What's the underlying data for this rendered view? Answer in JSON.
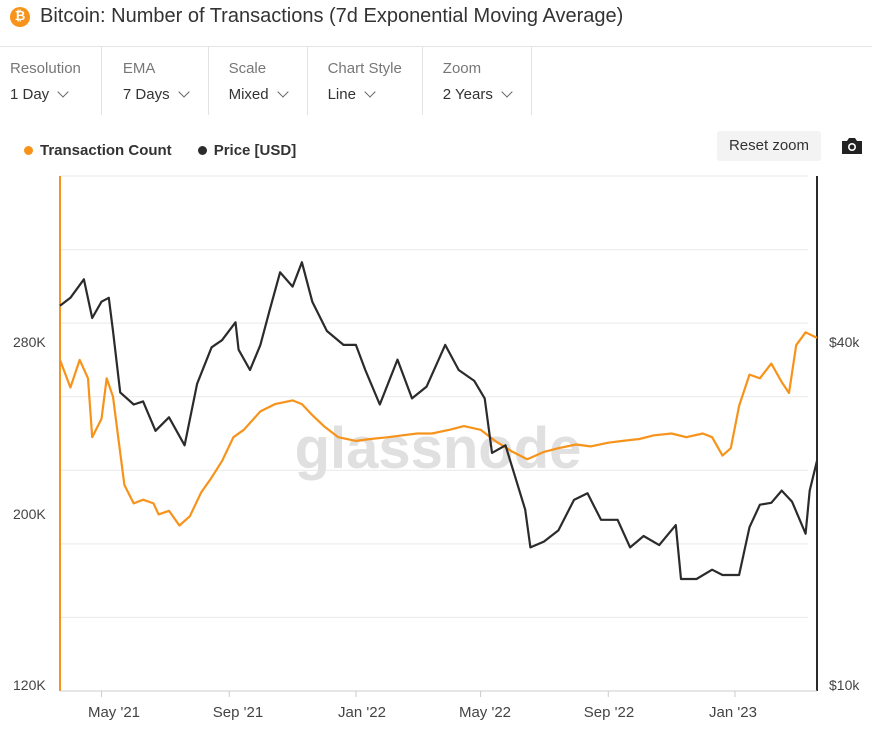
{
  "header": {
    "coin_icon": "bitcoin-icon",
    "title": "Bitcoin: Number of Transactions (7d Exponential Moving Average)"
  },
  "controls": [
    {
      "label": "Resolution",
      "value": "1 Day"
    },
    {
      "label": "EMA",
      "value": "7 Days"
    },
    {
      "label": "Scale",
      "value": "Mixed"
    },
    {
      "label": "Chart Style",
      "value": "Line"
    },
    {
      "label": "Zoom",
      "value": "2 Years"
    }
  ],
  "toolbar": {
    "reset_zoom_label": "Reset zoom",
    "camera_icon": "camera-icon"
  },
  "watermark": "glassnode",
  "colors": {
    "transactions": "#f7931a",
    "price": "#2b2b2b",
    "grid": "#e9e9e9"
  },
  "chart_data": {
    "type": "line",
    "legend_position": "top-left",
    "grid": true,
    "x_range": [
      "2021-03-22",
      "2023-03-21"
    ],
    "x_ticks": [
      {
        "date": "2021-05-01",
        "label": "May '21"
      },
      {
        "date": "2021-09-01",
        "label": "Sep '21"
      },
      {
        "date": "2022-01-01",
        "label": "Jan '22"
      },
      {
        "date": "2022-05-01",
        "label": "May '22"
      },
      {
        "date": "2022-09-01",
        "label": "Sep '22"
      },
      {
        "date": "2023-01-01",
        "label": "Jan '23"
      }
    ],
    "left_axis": {
      "ylim": [
        120000,
        400000
      ],
      "ticks": [
        120000,
        200000,
        280000
      ],
      "tick_labels": [
        "120K",
        "200K",
        "280K"
      ]
    },
    "right_axis": {
      "scale": "log",
      "ylim": [
        10000,
        100000
      ],
      "ticks": [
        10000,
        40000
      ],
      "tick_labels": [
        "$10k",
        "$40k"
      ]
    },
    "series": [
      {
        "name": "Transaction Count",
        "axis": "left",
        "color": "#f7931a",
        "points": [
          [
            "2021-03-22",
            300000
          ],
          [
            "2021-04-01",
            285000
          ],
          [
            "2021-04-10",
            300000
          ],
          [
            "2021-04-18",
            290000
          ],
          [
            "2021-04-22",
            258000
          ],
          [
            "2021-05-01",
            268000
          ],
          [
            "2021-05-06",
            290000
          ],
          [
            "2021-05-12",
            280000
          ],
          [
            "2021-05-17",
            258000
          ],
          [
            "2021-05-23",
            232000
          ],
          [
            "2021-06-01",
            222000
          ],
          [
            "2021-06-10",
            224000
          ],
          [
            "2021-06-20",
            222000
          ],
          [
            "2021-06-25",
            216000
          ],
          [
            "2021-07-05",
            218000
          ],
          [
            "2021-07-15",
            210000
          ],
          [
            "2021-07-25",
            215000
          ],
          [
            "2021-08-05",
            228000
          ],
          [
            "2021-08-15",
            236000
          ],
          [
            "2021-08-25",
            245000
          ],
          [
            "2021-09-05",
            258000
          ],
          [
            "2021-09-15",
            262000
          ],
          [
            "2021-10-01",
            272000
          ],
          [
            "2021-10-15",
            276000
          ],
          [
            "2021-11-01",
            278000
          ],
          [
            "2021-11-10",
            276000
          ],
          [
            "2021-11-20",
            270000
          ],
          [
            "2021-12-01",
            264000
          ],
          [
            "2021-12-15",
            258000
          ],
          [
            "2022-01-01",
            256000
          ],
          [
            "2022-01-15",
            257000
          ],
          [
            "2022-02-01",
            258000
          ],
          [
            "2022-02-15",
            259000
          ],
          [
            "2022-03-01",
            260000
          ],
          [
            "2022-03-15",
            260000
          ],
          [
            "2022-04-01",
            262000
          ],
          [
            "2022-04-15",
            264000
          ],
          [
            "2022-05-01",
            262000
          ],
          [
            "2022-05-15",
            256000
          ],
          [
            "2022-06-01",
            250000
          ],
          [
            "2022-06-15",
            246000
          ],
          [
            "2022-07-01",
            250000
          ],
          [
            "2022-07-15",
            252000
          ],
          [
            "2022-08-01",
            254000
          ],
          [
            "2022-08-15",
            253000
          ],
          [
            "2022-09-01",
            255000
          ],
          [
            "2022-09-15",
            256000
          ],
          [
            "2022-10-01",
            257000
          ],
          [
            "2022-10-15",
            259000
          ],
          [
            "2022-11-01",
            260000
          ],
          [
            "2022-11-15",
            258000
          ],
          [
            "2022-12-01",
            260000
          ],
          [
            "2022-12-10",
            258000
          ],
          [
            "2022-12-20",
            248000
          ],
          [
            "2022-12-28",
            252000
          ],
          [
            "2023-01-05",
            275000
          ],
          [
            "2023-01-15",
            292000
          ],
          [
            "2023-01-25",
            290000
          ],
          [
            "2023-02-05",
            298000
          ],
          [
            "2023-02-15",
            288000
          ],
          [
            "2023-02-22",
            282000
          ],
          [
            "2023-03-01",
            308000
          ],
          [
            "2023-03-10",
            315000
          ],
          [
            "2023-03-21",
            312000
          ]
        ]
      },
      {
        "name": "Price [USD]",
        "axis": "right",
        "color": "#2b2b2b",
        "points": [
          [
            "2021-03-22",
            56000
          ],
          [
            "2021-04-01",
            58000
          ],
          [
            "2021-04-14",
            63000
          ],
          [
            "2021-04-22",
            53000
          ],
          [
            "2021-05-01",
            57000
          ],
          [
            "2021-05-08",
            58000
          ],
          [
            "2021-05-12",
            50000
          ],
          [
            "2021-05-19",
            38000
          ],
          [
            "2021-06-01",
            36000
          ],
          [
            "2021-06-10",
            36500
          ],
          [
            "2021-06-22",
            32000
          ],
          [
            "2021-07-05",
            34000
          ],
          [
            "2021-07-20",
            30000
          ],
          [
            "2021-08-01",
            39500
          ],
          [
            "2021-08-15",
            46500
          ],
          [
            "2021-08-25",
            48000
          ],
          [
            "2021-09-07",
            52000
          ],
          [
            "2021-09-10",
            46000
          ],
          [
            "2021-09-21",
            42000
          ],
          [
            "2021-10-01",
            47000
          ],
          [
            "2021-10-10",
            55000
          ],
          [
            "2021-10-20",
            65000
          ],
          [
            "2021-11-01",
            61000
          ],
          [
            "2021-11-10",
            68000
          ],
          [
            "2021-11-20",
            57000
          ],
          [
            "2021-12-04",
            50000
          ],
          [
            "2021-12-20",
            47000
          ],
          [
            "2022-01-01",
            47000
          ],
          [
            "2022-01-10",
            42000
          ],
          [
            "2022-01-24",
            36000
          ],
          [
            "2022-02-10",
            44000
          ],
          [
            "2022-02-24",
            37000
          ],
          [
            "2022-03-10",
            39000
          ],
          [
            "2022-03-28",
            47000
          ],
          [
            "2022-04-10",
            42000
          ],
          [
            "2022-04-25",
            40000
          ],
          [
            "2022-05-05",
            37000
          ],
          [
            "2022-05-12",
            29000
          ],
          [
            "2022-05-25",
            30000
          ],
          [
            "2022-06-13",
            22500
          ],
          [
            "2022-06-18",
            19000
          ],
          [
            "2022-07-01",
            19500
          ],
          [
            "2022-07-15",
            20500
          ],
          [
            "2022-07-30",
            23500
          ],
          [
            "2022-08-12",
            24200
          ],
          [
            "2022-08-25",
            21500
          ],
          [
            "2022-09-10",
            21500
          ],
          [
            "2022-09-22",
            19000
          ],
          [
            "2022-10-05",
            20000
          ],
          [
            "2022-10-20",
            19200
          ],
          [
            "2022-11-05",
            21000
          ],
          [
            "2022-11-10",
            16500
          ],
          [
            "2022-11-25",
            16500
          ],
          [
            "2022-12-10",
            17200
          ],
          [
            "2022-12-20",
            16800
          ],
          [
            "2023-01-05",
            16800
          ],
          [
            "2023-01-15",
            20800
          ],
          [
            "2023-01-25",
            23000
          ],
          [
            "2023-02-05",
            23200
          ],
          [
            "2023-02-15",
            24500
          ],
          [
            "2023-02-25",
            23300
          ],
          [
            "2023-03-10",
            20200
          ],
          [
            "2023-03-14",
            24500
          ],
          [
            "2023-03-21",
            28000
          ]
        ]
      }
    ]
  }
}
